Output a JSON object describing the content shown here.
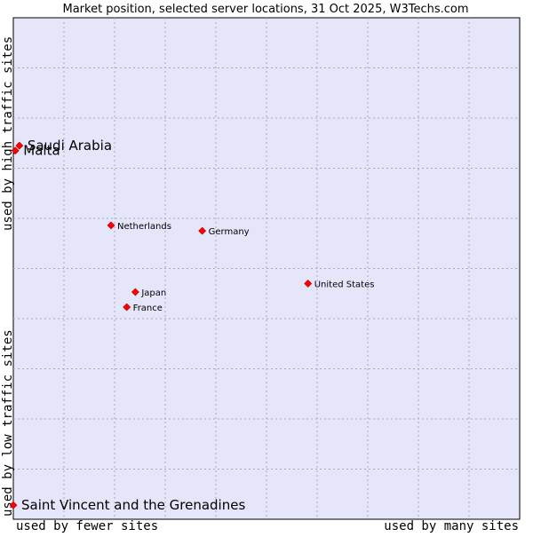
{
  "chart_data": {
    "type": "scatter",
    "title": "Market position, selected server locations, 31 Oct 2025, W3Techs.com",
    "xlabel_left": "used by fewer sites",
    "xlabel_right": "used by many sites",
    "ylabel_top": "used by high traffic sites",
    "ylabel_bottom": "used by low traffic sites",
    "xlim": [
      0,
      100
    ],
    "ylim": [
      0,
      100
    ],
    "grid": true,
    "marker_color": "#ff0000",
    "plot_background": "#e6e6fa",
    "points": [
      {
        "label": "Saudi Arabia",
        "x": 1.2,
        "y": 74.5,
        "emphasis": true
      },
      {
        "label": "Malta",
        "x": 0.4,
        "y": 73.5,
        "emphasis": true
      },
      {
        "label": "Netherlands",
        "x": 19.3,
        "y": 58.6,
        "emphasis": false
      },
      {
        "label": "Germany",
        "x": 37.3,
        "y": 57.5,
        "emphasis": false
      },
      {
        "label": "United States",
        "x": 58.2,
        "y": 47.0,
        "emphasis": false
      },
      {
        "label": "Japan",
        "x": 24.1,
        "y": 45.3,
        "emphasis": false
      },
      {
        "label": "France",
        "x": 22.4,
        "y": 42.3,
        "emphasis": false
      },
      {
        "label": "Saint Vincent and the Grenadines",
        "x": 0,
        "y": 2.8,
        "emphasis": true
      }
    ]
  }
}
